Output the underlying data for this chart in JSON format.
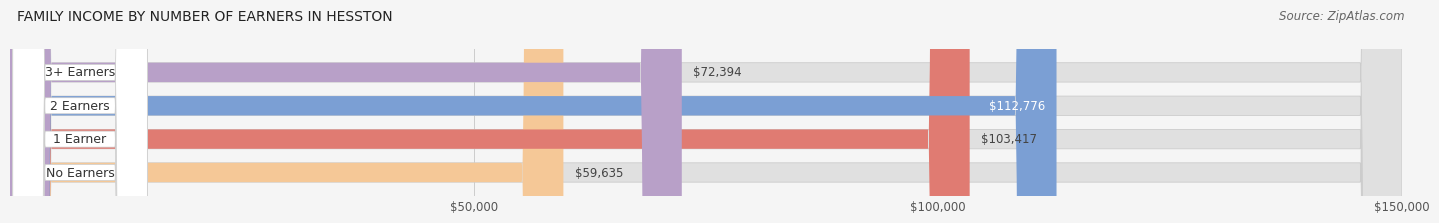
{
  "title": "FAMILY INCOME BY NUMBER OF EARNERS IN HESSTON",
  "source": "Source: ZipAtlas.com",
  "categories": [
    "No Earners",
    "1 Earner",
    "2 Earners",
    "3+ Earners"
  ],
  "values": [
    59635,
    103417,
    112776,
    72394
  ],
  "labels": [
    "$59,635",
    "$103,417",
    "$112,776",
    "$72,394"
  ],
  "bar_colors": [
    "#f5c897",
    "#e07b72",
    "#7b9fd4",
    "#b8a0c8"
  ],
  "label_inside": [
    false,
    false,
    true,
    false
  ],
  "bar_bg_color": "#e0e0e0",
  "xlim_min": 0,
  "xlim_max": 150000,
  "xticks": [
    50000,
    100000,
    150000
  ],
  "xtick_labels": [
    "$50,000",
    "$100,000",
    "$150,000"
  ],
  "title_fontsize": 10,
  "source_fontsize": 8.5,
  "bar_label_fontsize": 8.5,
  "category_fontsize": 9,
  "tick_fontsize": 8.5,
  "fig_bg_color": "#f5f5f5",
  "bar_bg_outer_color": "#d8d8d8"
}
